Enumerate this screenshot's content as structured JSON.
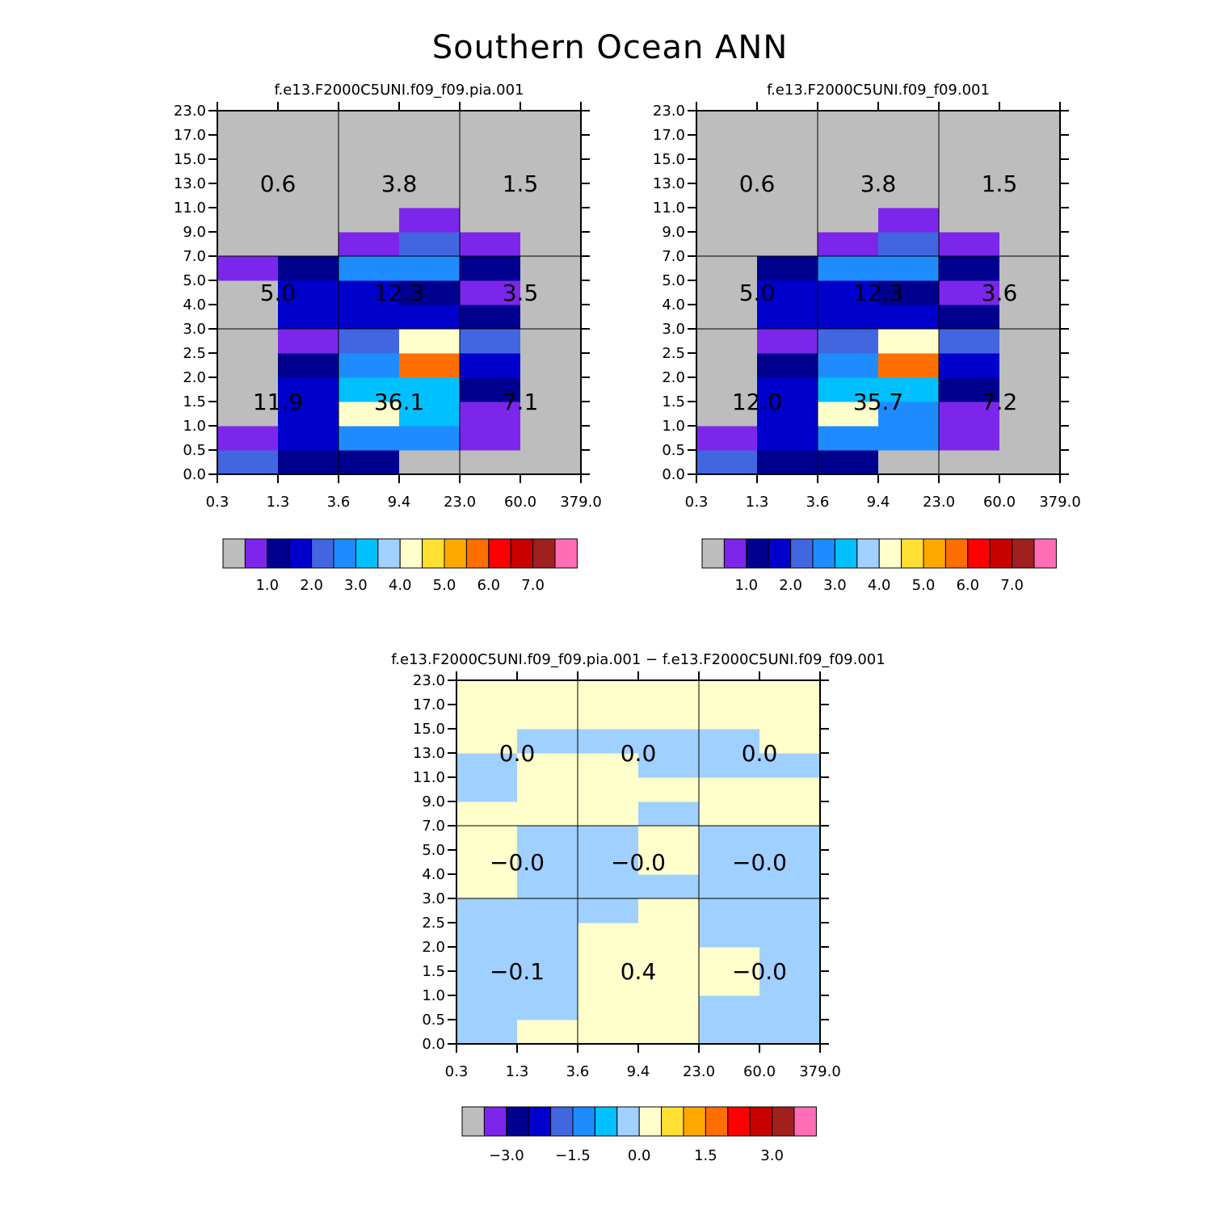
{
  "title": "Southern Ocean ANN",
  "palette": [
    "#bdbdbd",
    "#7d26eb",
    "#00008f",
    "#0000cd",
    "#4266e0",
    "#1e8cff",
    "#00c0ff",
    "#a0d0ff",
    "#ffffcc",
    "#ffe032",
    "#ffa800",
    "#ff6e00",
    "#ff0000",
    "#c80000",
    "#a02020",
    "#ff6eb4"
  ],
  "chart_data": [
    {
      "type": "heatmap",
      "name": "panel-1",
      "title": "f.e13.F2000C5UNI.f09_f09.pia.001",
      "x_edges": [
        "0.3",
        "1.3",
        "3.6",
        "9.4",
        "23.0",
        "60.0",
        "379.0"
      ],
      "y_edges": [
        "0.0",
        "0.5",
        "1.0",
        "1.5",
        "2.0",
        "2.5",
        "3.0",
        "4.0",
        "5.0",
        "7.0",
        "9.0",
        "11.0",
        "13.0",
        "15.0",
        "17.0",
        "23.0"
      ],
      "cells_bottom_to_top": [
        [
          4,
          2,
          2,
          0,
          0,
          0
        ],
        [
          1,
          3,
          5,
          5,
          1,
          0
        ],
        [
          0,
          3,
          8,
          6,
          1,
          0
        ],
        [
          0,
          3,
          6,
          6,
          2,
          0
        ],
        [
          0,
          2,
          5,
          11,
          3,
          0
        ],
        [
          0,
          1,
          4,
          8,
          4,
          0
        ],
        [
          0,
          3,
          3,
          3,
          2,
          0
        ],
        [
          0,
          3,
          3,
          2,
          1,
          0
        ],
        [
          1,
          2,
          5,
          5,
          2,
          0
        ],
        [
          0,
          0,
          1,
          4,
          1,
          0
        ],
        [
          0,
          0,
          0,
          1,
          0,
          0
        ],
        [
          0,
          0,
          0,
          0,
          0,
          0
        ],
        [
          0,
          0,
          0,
          0,
          0,
          0
        ],
        [
          0,
          0,
          0,
          0,
          0,
          0
        ],
        [
          0,
          0,
          0,
          0,
          0,
          0
        ]
      ],
      "group_values": [
        [
          "0.6",
          "3.8",
          "1.5"
        ],
        [
          "5.0",
          "12.3",
          "3.5"
        ],
        [
          "11.9",
          "36.1",
          "7.1"
        ]
      ],
      "colorbar_labels": [
        "1.0",
        "2.0",
        "3.0",
        "4.0",
        "5.0",
        "6.0",
        "7.0"
      ]
    },
    {
      "type": "heatmap",
      "name": "panel-2",
      "title": "f.e13.F2000C5UNI.f09_f09.001",
      "x_edges": [
        "0.3",
        "1.3",
        "3.6",
        "9.4",
        "23.0",
        "60.0",
        "379.0"
      ],
      "y_edges": [
        "0.0",
        "0.5",
        "1.0",
        "1.5",
        "2.0",
        "2.5",
        "3.0",
        "4.0",
        "5.0",
        "7.0",
        "9.0",
        "11.0",
        "13.0",
        "15.0",
        "17.0",
        "23.0"
      ],
      "cells_bottom_to_top": [
        [
          4,
          2,
          2,
          0,
          0,
          0
        ],
        [
          1,
          3,
          5,
          5,
          1,
          0
        ],
        [
          0,
          3,
          8,
          5,
          1,
          0
        ],
        [
          0,
          3,
          6,
          6,
          2,
          0
        ],
        [
          0,
          2,
          5,
          11,
          3,
          0
        ],
        [
          0,
          1,
          4,
          8,
          4,
          0
        ],
        [
          0,
          3,
          3,
          3,
          2,
          0
        ],
        [
          0,
          3,
          3,
          2,
          1,
          0
        ],
        [
          0,
          2,
          5,
          5,
          2,
          0
        ],
        [
          0,
          0,
          1,
          4,
          1,
          0
        ],
        [
          0,
          0,
          0,
          1,
          0,
          0
        ],
        [
          0,
          0,
          0,
          0,
          0,
          0
        ],
        [
          0,
          0,
          0,
          0,
          0,
          0
        ],
        [
          0,
          0,
          0,
          0,
          0,
          0
        ],
        [
          0,
          0,
          0,
          0,
          0,
          0
        ]
      ],
      "group_values": [
        [
          "0.6",
          "3.8",
          "1.5"
        ],
        [
          "5.0",
          "12.3",
          "3.6"
        ],
        [
          "12.0",
          "35.7",
          "7.2"
        ]
      ],
      "colorbar_labels": [
        "1.0",
        "2.0",
        "3.0",
        "4.0",
        "5.0",
        "6.0",
        "7.0"
      ]
    },
    {
      "type": "heatmap",
      "name": "panel-diff",
      "title": "f.e13.F2000C5UNI.f09_f09.pia.001 − f.e13.F2000C5UNI.f09_f09.001",
      "x_edges": [
        "0.3",
        "1.3",
        "3.6",
        "9.4",
        "23.0",
        "60.0",
        "379.0"
      ],
      "y_edges": [
        "0.0",
        "0.5",
        "1.0",
        "1.5",
        "2.0",
        "2.5",
        "3.0",
        "4.0",
        "5.0",
        "7.0",
        "9.0",
        "11.0",
        "13.0",
        "15.0",
        "17.0",
        "23.0"
      ],
      "cells_bottom_to_top": [
        [
          7,
          8,
          8,
          8,
          7,
          7
        ],
        [
          7,
          7,
          8,
          8,
          7,
          7
        ],
        [
          7,
          7,
          8,
          8,
          8,
          7
        ],
        [
          7,
          7,
          8,
          8,
          8,
          7
        ],
        [
          7,
          7,
          8,
          8,
          7,
          7
        ],
        [
          7,
          7,
          7,
          8,
          7,
          7
        ],
        [
          8,
          7,
          7,
          7,
          7,
          7
        ],
        [
          8,
          7,
          7,
          8,
          7,
          7
        ],
        [
          8,
          7,
          7,
          8,
          7,
          7
        ],
        [
          8,
          8,
          8,
          7,
          8,
          8
        ],
        [
          7,
          8,
          8,
          8,
          8,
          8
        ],
        [
          7,
          8,
          8,
          7,
          7,
          7
        ],
        [
          8,
          7,
          7,
          7,
          7,
          8
        ],
        [
          8,
          8,
          8,
          8,
          8,
          8
        ],
        [
          8,
          8,
          8,
          8,
          8,
          8
        ]
      ],
      "group_values": [
        [
          "0.0",
          "0.0",
          "0.0"
        ],
        [
          "−0.0",
          "−0.0",
          "−0.0"
        ],
        [
          "−0.1",
          "0.4",
          "−0.0"
        ]
      ],
      "colorbar_labels": [
        "−3.0",
        "−1.5",
        "0.0",
        "1.5",
        "3.0"
      ]
    }
  ]
}
